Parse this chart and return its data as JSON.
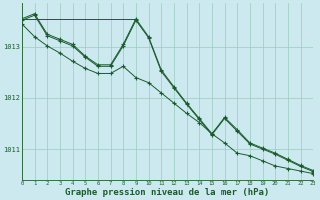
{
  "background_color": "#cce9f0",
  "grid_color": "#99ccbb",
  "line_color": "#1a5c2a",
  "xlabel": "Graphe pression niveau de la mer (hPa)",
  "xlabel_fontsize": 6.5,
  "ylabel_ticks": [
    1011,
    1012,
    1013
  ],
  "xlim": [
    0,
    23
  ],
  "ylim": [
    1010.4,
    1013.85
  ],
  "xticks": [
    0,
    1,
    2,
    3,
    4,
    5,
    6,
    7,
    8,
    9,
    10,
    11,
    12,
    13,
    14,
    15,
    16,
    17,
    18,
    19,
    20,
    21,
    22,
    23
  ],
  "s_flat_x": [
    0,
    1,
    2,
    3,
    4,
    5,
    6,
    7,
    8,
    9
  ],
  "s_flat_y": [
    1013.55,
    1013.55,
    1013.55,
    1013.55,
    1013.55,
    1013.55,
    1013.55,
    1013.55,
    1013.55,
    1013.55
  ],
  "s1": [
    1013.55,
    1013.65,
    1013.25,
    1013.15,
    1013.05,
    1012.82,
    1012.65,
    1012.65,
    1013.05,
    1013.55,
    1013.2,
    1012.55,
    1012.22,
    1011.9,
    1011.6,
    1011.3,
    1011.62,
    1011.38,
    1011.12,
    1011.02,
    1010.92,
    1010.8,
    1010.68,
    1010.58
  ],
  "s2": [
    1013.52,
    1013.62,
    1013.22,
    1013.12,
    1013.02,
    1012.8,
    1012.62,
    1012.62,
    1013.02,
    1013.52,
    1013.18,
    1012.52,
    1012.2,
    1011.88,
    1011.58,
    1011.28,
    1011.6,
    1011.35,
    1011.1,
    1011.0,
    1010.9,
    1010.78,
    1010.66,
    1010.56
  ],
  "s3": [
    1013.45,
    1013.2,
    1013.02,
    1012.88,
    1012.72,
    1012.58,
    1012.48,
    1012.48,
    1012.62,
    1012.4,
    1012.3,
    1012.1,
    1011.9,
    1011.7,
    1011.52,
    1011.3,
    1011.12,
    1010.92,
    1010.87,
    1010.77,
    1010.67,
    1010.62,
    1010.57,
    1010.52
  ]
}
